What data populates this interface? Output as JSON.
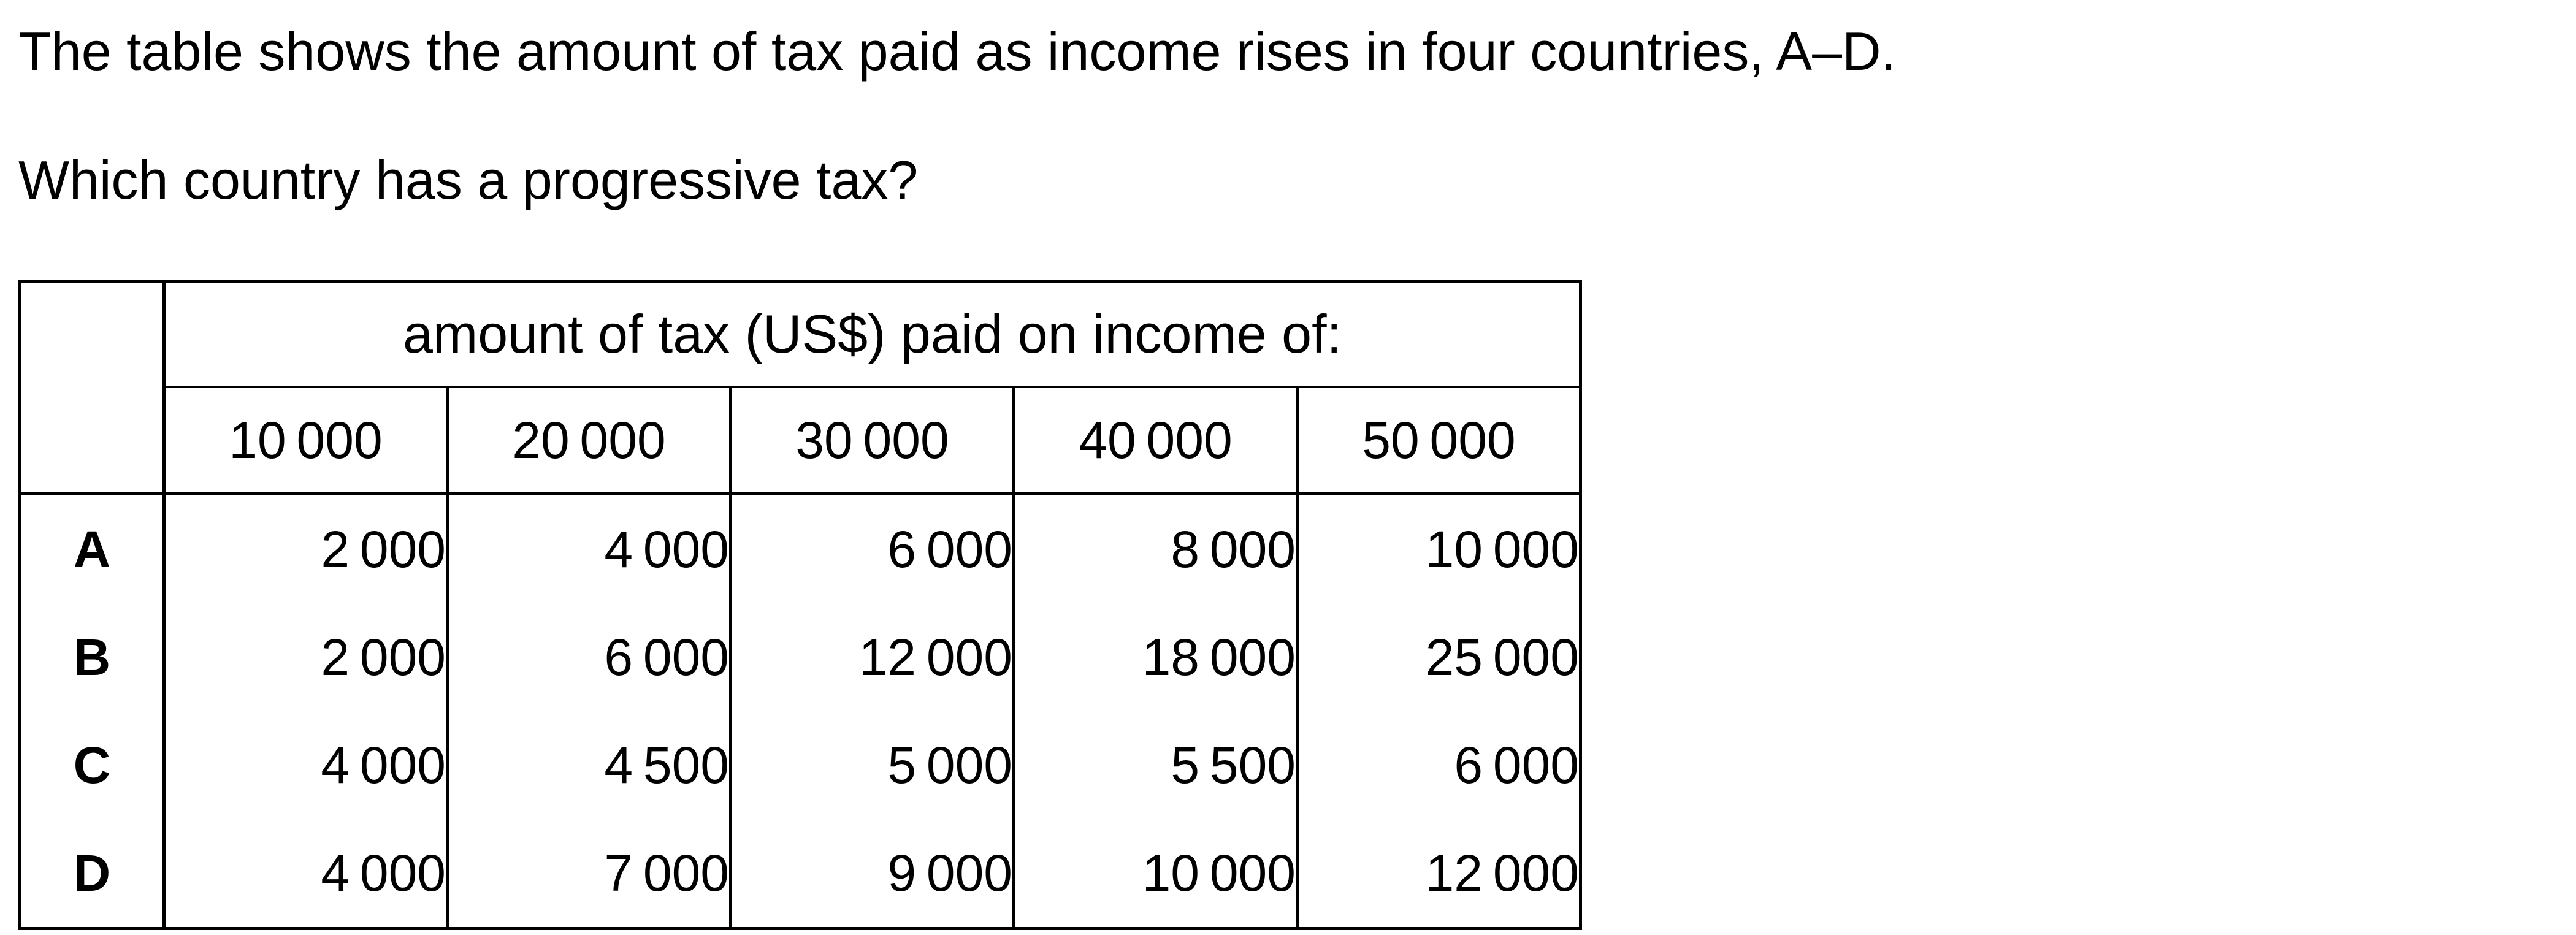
{
  "intro": "The table shows the amount of tax paid as income rises in four countries, A–D.",
  "question": "Which country has a progressive tax?",
  "table": {
    "caption": "amount of tax (US$) paid on income of:",
    "incomes": [
      "10 000",
      "20 000",
      "30 000",
      "40 000",
      "50 000"
    ],
    "rows": [
      {
        "label": "A",
        "values": [
          "2 000",
          "4 000",
          "6 000",
          "8 000",
          "10 000"
        ]
      },
      {
        "label": "B",
        "values": [
          "2 000",
          "6 000",
          "12 000",
          "18 000",
          "25 000"
        ]
      },
      {
        "label": "C",
        "values": [
          "4 000",
          "4 500",
          "5 000",
          "5 500",
          "6 000"
        ]
      },
      {
        "label": "D",
        "values": [
          "4 000",
          "7 000",
          "9 000",
          "10 000",
          "12 000"
        ]
      }
    ]
  }
}
